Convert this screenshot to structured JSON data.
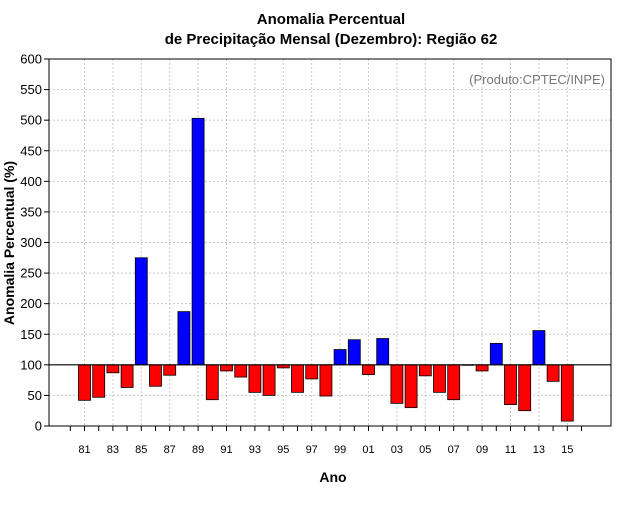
{
  "chart_data": {
    "type": "bar",
    "title_line1": "Anomalia Percentual",
    "title_line2": "de Precipitação Mensal (Dezembro): Região 62",
    "xlabel": "Ano",
    "ylabel": "Anomalia Percentual (%)",
    "credit": "(Produto:CPTEC/INPE)",
    "ylim": [
      0,
      600
    ],
    "yticks": [
      0,
      50,
      100,
      150,
      200,
      250,
      300,
      350,
      400,
      450,
      500,
      550,
      600
    ],
    "baseline": 100,
    "x_tick_labels": [
      "81",
      "83",
      "85",
      "87",
      "89",
      "91",
      "93",
      "95",
      "97",
      "99",
      "01",
      "03",
      "05",
      "07",
      "09",
      "11",
      "13",
      "15"
    ],
    "categories": [
      "1981",
      "1982",
      "1983",
      "1984",
      "1985",
      "1986",
      "1987",
      "1988",
      "1989",
      "1990",
      "1991",
      "1992",
      "1993",
      "1994",
      "1995",
      "1996",
      "1997",
      "1998",
      "1999",
      "2000",
      "2001",
      "2002",
      "2003",
      "2004",
      "2005",
      "2006",
      "2007",
      "2008",
      "2009",
      "2010",
      "2011",
      "2012",
      "2013",
      "2014",
      "2015"
    ],
    "values": [
      42,
      47,
      87,
      63,
      275,
      65,
      83,
      187,
      503,
      43,
      90,
      80,
      55,
      50,
      95,
      55,
      77,
      49,
      125,
      141,
      84,
      143,
      37,
      30,
      82,
      55,
      43,
      100,
      90,
      135,
      35,
      25,
      156,
      73,
      8
    ],
    "colors": {
      "above": "#0000ff",
      "below": "#ff0000",
      "grid": "#c8c8c8",
      "baseline": "#000000"
    }
  }
}
